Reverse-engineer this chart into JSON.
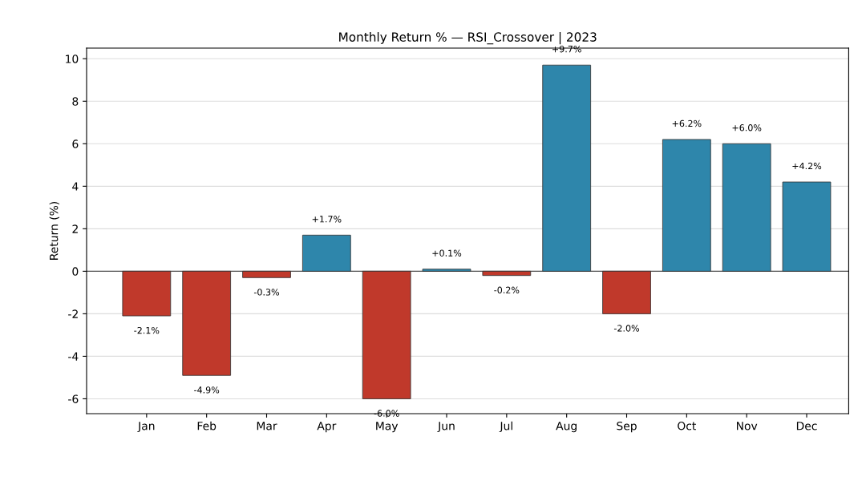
{
  "chart_data": {
    "type": "bar",
    "title": "Monthly Return % — RSI_Crossover | 2023",
    "ylabel": "Return (%)",
    "categories": [
      "Jan",
      "Feb",
      "Mar",
      "Apr",
      "May",
      "Jun",
      "Jul",
      "Aug",
      "Sep",
      "Oct",
      "Nov",
      "Dec"
    ],
    "values": [
      -2.1,
      -4.9,
      -0.3,
      1.7,
      -6.0,
      0.1,
      -0.2,
      9.7,
      -2.0,
      6.2,
      6.0,
      4.2
    ],
    "colors": [
      "#c0392b",
      "#c0392b",
      "#c0392b",
      "#2e86ab",
      "#c0392b",
      "#2e86ab",
      "#c0392b",
      "#2e86ab",
      "#c0392b",
      "#2e86ab",
      "#2e86ab",
      "#2e86ab"
    ],
    "value_labels": [
      "-2.1%",
      "-4.9%",
      "-0.3%",
      "+1.7%",
      "-6.0%",
      "+0.1%",
      "-0.2%",
      "+9.7%",
      "-2.0%",
      "+6.2%",
      "+6.0%",
      "+4.2%"
    ],
    "ylim": [
      -6.7,
      10.5
    ],
    "yticks": [
      -6,
      -4,
      -2,
      0,
      2,
      4,
      6,
      8,
      10
    ],
    "ref_lines": [
      {
        "axis": "y",
        "value": 0,
        "color": "#555555"
      }
    ],
    "grid": "y"
  }
}
